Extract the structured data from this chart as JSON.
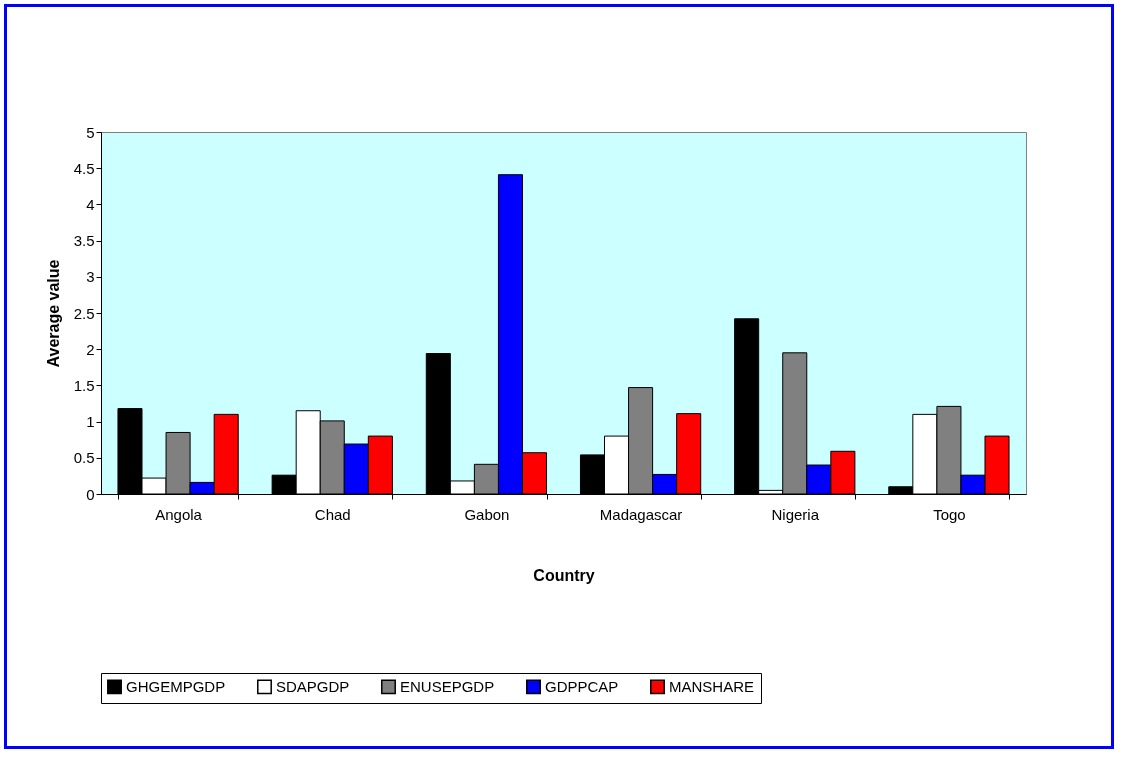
{
  "chart_data": {
    "type": "bar",
    "xlabel": "Country",
    "ylabel": "Average value",
    "categories": [
      "Angola",
      "Chad",
      "Gabon",
      "Madagascar",
      "Nigeria",
      "Togo"
    ],
    "series": [
      {
        "name": "GHGEMPGDP",
        "color": "#000000",
        "values": [
          1.18,
          0.26,
          1.94,
          0.54,
          2.42,
          0.1
        ]
      },
      {
        "name": "SDAPGDP",
        "color": "#ffffff",
        "values": [
          0.22,
          1.15,
          0.18,
          0.8,
          0.05,
          1.1
        ]
      },
      {
        "name": "ENUSEPGDP",
        "color": "#808080",
        "values": [
          0.85,
          1.01,
          0.41,
          1.47,
          1.95,
          1.21
        ]
      },
      {
        "name": "GDPPCAP",
        "color": "#0000ff",
        "values": [
          0.16,
          0.69,
          4.41,
          0.27,
          0.4,
          0.26
        ]
      },
      {
        "name": "MANSHARE",
        "color": "#ff0000",
        "values": [
          1.1,
          0.8,
          0.57,
          1.11,
          0.59,
          0.8
        ]
      }
    ],
    "ylim": [
      0,
      5
    ],
    "yticks": [
      0,
      0.5,
      1,
      1.5,
      2,
      2.5,
      3,
      3.5,
      4,
      4.5,
      5
    ],
    "grid": false,
    "legend": "bottom"
  }
}
